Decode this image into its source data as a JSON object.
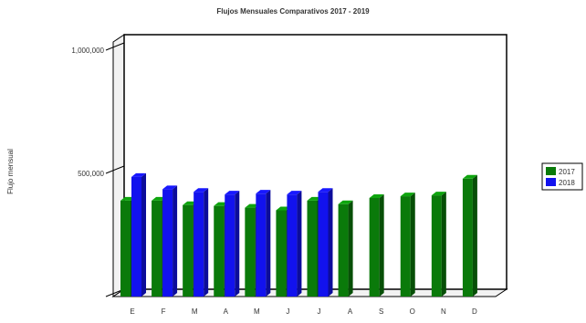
{
  "chart_data": {
    "type": "bar",
    "title": "Flujos Mensuales Comparativos 2017 - 2019",
    "xlabel": "",
    "ylabel": "Flujo mensual",
    "categories": [
      "E",
      "F",
      "M",
      "A",
      "M",
      "J",
      "J",
      "A",
      "S",
      "O",
      "N",
      "D"
    ],
    "series": [
      {
        "name": "2017",
        "color": "#0a7a0a",
        "values": [
          545,
          545,
          520,
          515,
          505,
          490,
          545,
          525,
          560,
          570,
          575,
          670
        ]
      },
      {
        "name": "2018",
        "color": "#1212ee",
        "values": [
          680,
          610,
          595,
          580,
          585,
          580,
          595,
          null,
          null,
          null,
          null,
          null
        ]
      }
    ],
    "yticks": [
      {
        "value": 0,
        "label": ""
      },
      {
        "value": 700,
        "label": "500,000"
      },
      {
        "value": 1400,
        "label": "1,000,000"
      }
    ],
    "ylim": [
      0,
      1400
    ],
    "grid": false,
    "legend": "right",
    "style": "3d"
  }
}
